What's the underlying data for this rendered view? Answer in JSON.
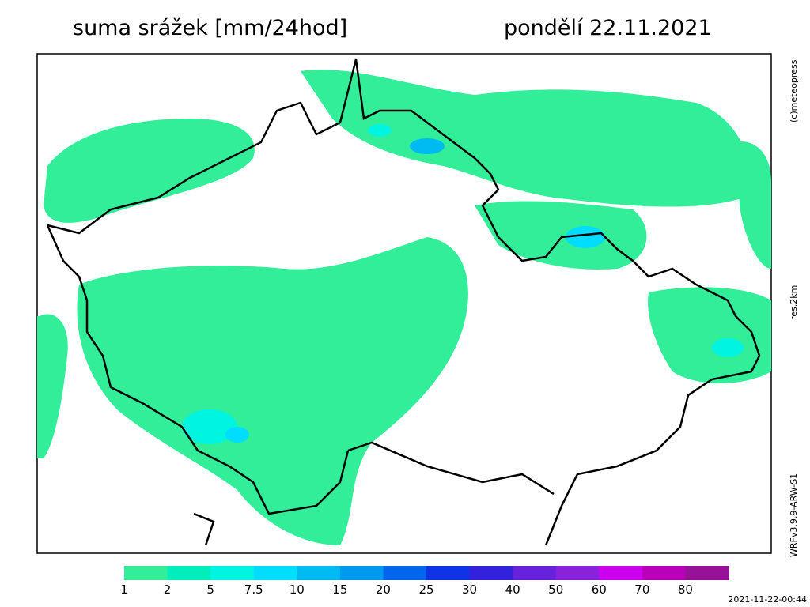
{
  "header": {
    "title": "suma srážek [mm/24hod]",
    "date": "pondělí 22.11.2021"
  },
  "side_labels": {
    "copyright": "(c)meteopress",
    "resolution": "res.2km",
    "model": "WRFv3.9.9-ARW-S1"
  },
  "legend": {
    "values": [
      1,
      2,
      5,
      7.5,
      10,
      15,
      20,
      25,
      30,
      40,
      50,
      60,
      70,
      80
    ],
    "colors": [
      "#33ee99",
      "#00eebb",
      "#00f5e0",
      "#00ddff",
      "#00bbf2",
      "#0099f0",
      "#0066ee",
      "#1133e6",
      "#3322dd",
      "#6622dd",
      "#8822dd",
      "#cc00ee",
      "#bb00bb",
      "#991199"
    ]
  },
  "timestamp": "2021-11-22-00:44"
}
